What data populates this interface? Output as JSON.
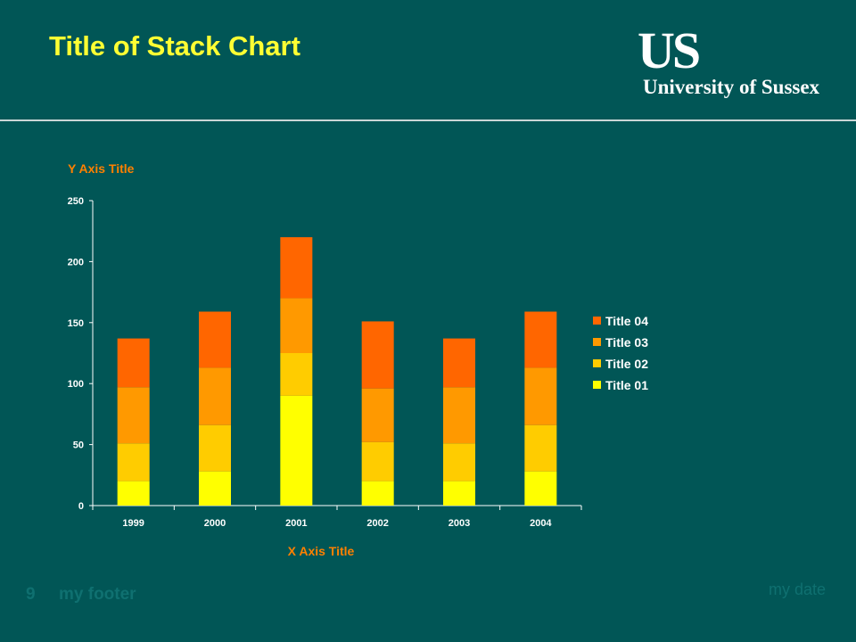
{
  "slide": {
    "title": "Title of Stack Chart",
    "logo_mark": "US",
    "logo_text": "University of Sussex",
    "footer_number": "9",
    "footer_text": "my footer",
    "footer_date": "my date"
  },
  "colors": {
    "background": "#015656",
    "title": "#ffff33",
    "axis_title": "#ff8000",
    "text": "#ffffff",
    "footer": "#0f7070"
  },
  "chart_data": {
    "type": "bar",
    "stacked": true,
    "categories": [
      "1999",
      "2000",
      "2001",
      "2002",
      "2003",
      "2004"
    ],
    "series": [
      {
        "name": "Title 01",
        "color": "#ffff00",
        "values": [
          20,
          28,
          90,
          20,
          20,
          28
        ]
      },
      {
        "name": "Title 02",
        "color": "#ffcc00",
        "values": [
          31,
          38,
          35,
          32,
          31,
          38
        ]
      },
      {
        "name": "Title 03",
        "color": "#ff9900",
        "values": [
          46,
          47,
          45,
          44,
          46,
          47
        ]
      },
      {
        "name": "Title 04",
        "color": "#ff6600",
        "values": [
          40,
          46,
          50,
          55,
          40,
          46
        ]
      }
    ],
    "xlabel": "X Axis Title",
    "ylabel": "Y Axis Title",
    "ylim": [
      0,
      250
    ],
    "yticks": [
      0,
      50,
      100,
      150,
      200,
      250
    ],
    "grid": false,
    "legend_position": "right",
    "legend_order": "reverse"
  }
}
